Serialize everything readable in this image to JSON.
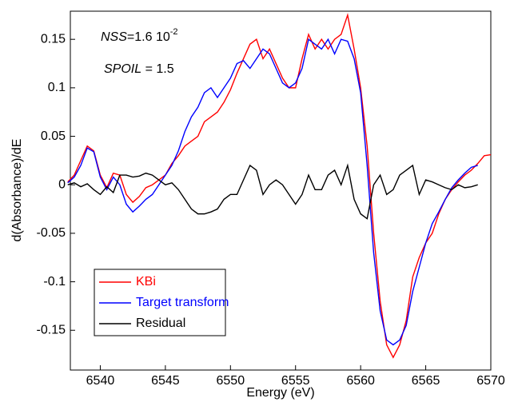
{
  "chart_data": {
    "type": "line",
    "annotations": [
      {
        "italic": "NSS",
        "text": "=1.6 10",
        "superscript": "-2"
      },
      {
        "italic": "SPOIL",
        "text": " = 1.5"
      }
    ],
    "xlabel": "Energy (eV)",
    "ylabel": "d(Absorbance)/dE",
    "xlim": [
      6537.7,
      6570
    ],
    "ylim": [
      -0.191,
      0.179
    ],
    "xticks": [
      6540,
      6545,
      6550,
      6555,
      6560,
      6565,
      6570
    ],
    "yticks": [
      0.15,
      0.1,
      0.05,
      0,
      -0.05,
      -0.1,
      -0.15
    ],
    "grid": false,
    "legend": "lower left",
    "x": [
      6537.5,
      6538,
      6538.5,
      6539,
      6539.5,
      6540,
      6540.5,
      6541,
      6541.5,
      6542,
      6542.5,
      6543,
      6543.5,
      6544,
      6544.5,
      6545,
      6545.5,
      6546,
      6546.5,
      6547,
      6547.5,
      6548,
      6548.5,
      6549,
      6549.5,
      6550,
      6550.5,
      6551,
      6551.5,
      6552,
      6552.5,
      6553,
      6553.5,
      6554,
      6554.5,
      6555,
      6555.5,
      6556,
      6556.5,
      6557,
      6557.5,
      6558,
      6558.5,
      6559,
      6559.5,
      6560,
      6560.5,
      6561,
      6561.5,
      6562,
      6562.5,
      6563,
      6563.5,
      6564,
      6564.5,
      6565,
      6565.5,
      6566,
      6566.5,
      6567,
      6567.5,
      6568,
      6568.5,
      6569,
      6569.5,
      6570
    ],
    "series": [
      {
        "name": "KBi",
        "color": "#ff0000",
        "values": [
          0.003,
          0.01,
          0.025,
          0.04,
          0.035,
          0.01,
          -0.003,
          0.012,
          0.01,
          -0.01,
          -0.018,
          -0.012,
          -0.003,
          0.0,
          0.005,
          0.01,
          0.022,
          0.03,
          0.04,
          0.045,
          0.05,
          0.065,
          0.07,
          0.075,
          0.085,
          0.098,
          0.115,
          0.13,
          0.145,
          0.15,
          0.13,
          0.14,
          0.125,
          0.11,
          0.1,
          0.1,
          0.13,
          0.155,
          0.14,
          0.15,
          0.14,
          0.15,
          0.155,
          0.175,
          0.14,
          0.1,
          0.04,
          -0.05,
          -0.12,
          -0.165,
          -0.178,
          -0.165,
          -0.14,
          -0.095,
          -0.075,
          -0.06,
          -0.05,
          -0.03,
          -0.015,
          -0.005,
          0.003,
          0.01,
          0.015,
          0.022,
          0.03,
          0.031
        ]
      },
      {
        "name": "Target transform",
        "color": "#0000ff",
        "values": [
          0.002,
          0.008,
          0.02,
          0.038,
          0.034,
          0.008,
          -0.005,
          0.008,
          0.0,
          -0.02,
          -0.028,
          -0.022,
          -0.015,
          -0.01,
          0.0,
          0.01,
          0.02,
          0.035,
          0.055,
          0.07,
          0.08,
          0.095,
          0.1,
          0.09,
          0.1,
          0.11,
          0.125,
          0.128,
          0.12,
          0.13,
          0.14,
          0.135,
          0.12,
          0.105,
          0.1,
          0.105,
          0.12,
          0.15,
          0.145,
          0.14,
          0.15,
          0.135,
          0.15,
          0.148,
          0.13,
          0.095,
          0.02,
          -0.07,
          -0.13,
          -0.16,
          -0.165,
          -0.16,
          -0.145,
          -0.11,
          -0.085,
          -0.06,
          -0.04,
          -0.028,
          -0.015,
          -0.003,
          0.005,
          0.012,
          0.018,
          0.02,
          null,
          null
        ]
      },
      {
        "name": "Residual",
        "color": "#000000",
        "values": [
          0.0,
          0.002,
          -0.002,
          0.001,
          -0.005,
          -0.01,
          -0.002,
          -0.008,
          0.01,
          0.01,
          0.008,
          0.009,
          0.012,
          0.01,
          0.005,
          0.0,
          0.002,
          -0.005,
          -0.015,
          -0.025,
          -0.03,
          -0.03,
          -0.028,
          -0.025,
          -0.015,
          -0.01,
          -0.01,
          0.005,
          0.02,
          0.015,
          -0.01,
          0.0,
          0.005,
          0.0,
          -0.01,
          -0.02,
          -0.01,
          0.01,
          -0.005,
          -0.005,
          0.01,
          0.015,
          0.0,
          0.02,
          -0.015,
          -0.03,
          -0.035,
          0.0,
          0.01,
          -0.01,
          -0.005,
          0.01,
          0.015,
          0.02,
          -0.01,
          0.005,
          0.003,
          0.0,
          -0.003,
          -0.005,
          0.0,
          -0.003,
          -0.002,
          0.0,
          null,
          null
        ]
      }
    ]
  }
}
